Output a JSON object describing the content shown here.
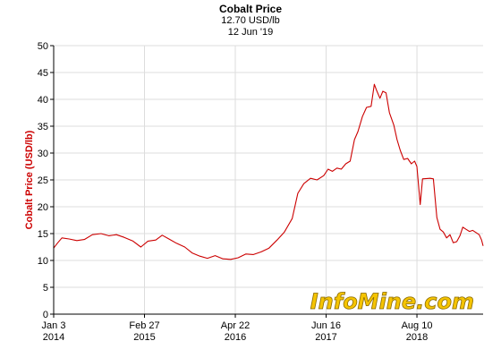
{
  "header": {
    "title": "Cobalt Price",
    "current_value": "12.70 USD/lb",
    "date": "12 Jun '19"
  },
  "watermark": {
    "text": "InfoMine.com",
    "fill": "#f5c400",
    "stroke": "#8a6a00"
  },
  "colors": {
    "line": "#cc0000",
    "axis": "#000000",
    "grid": "#dddddd",
    "ylabel": "#cc0000"
  },
  "chart_data": {
    "type": "line",
    "title": "Cobalt Price",
    "ylabel": "Cobalt Price (USD/lb)",
    "xlabel": "",
    "ylim": [
      0,
      50
    ],
    "yticks": [
      0,
      5,
      10,
      15,
      20,
      25,
      30,
      35,
      40,
      45,
      50
    ],
    "xlim": [
      "2014-01-03",
      "2019-06-12"
    ],
    "xticks": [
      {
        "date": "2014-01-03",
        "label": "Jan 3",
        "year": "2014"
      },
      {
        "date": "2015-02-27",
        "label": "Feb 27",
        "year": "2015"
      },
      {
        "date": "2016-04-22",
        "label": "Apr 22",
        "year": "2016"
      },
      {
        "date": "2017-06-16",
        "label": "Jun 16",
        "year": "2017"
      },
      {
        "date": "2018-08-10",
        "label": "Aug 10",
        "year": "2018"
      }
    ],
    "grid": true,
    "series": [
      {
        "points": [
          [
            "2014-01-03",
            12.3
          ],
          [
            "2014-01-20",
            13.2
          ],
          [
            "2014-02-10",
            14.2
          ],
          [
            "2014-03-15",
            14.0
          ],
          [
            "2014-04-20",
            13.7
          ],
          [
            "2014-05-25",
            13.9
          ],
          [
            "2014-07-01",
            14.8
          ],
          [
            "2014-08-10",
            15.0
          ],
          [
            "2014-09-15",
            14.6
          ],
          [
            "2014-10-20",
            14.8
          ],
          [
            "2014-11-25",
            14.3
          ],
          [
            "2015-01-05",
            13.6
          ],
          [
            "2015-02-10",
            12.5
          ],
          [
            "2015-03-15",
            13.6
          ],
          [
            "2015-04-20",
            13.8
          ],
          [
            "2015-05-20",
            14.7
          ],
          [
            "2015-06-20",
            14.0
          ],
          [
            "2015-07-25",
            13.2
          ],
          [
            "2015-09-01",
            12.5
          ],
          [
            "2015-10-05",
            11.4
          ],
          [
            "2015-11-10",
            10.8
          ],
          [
            "2015-12-15",
            10.4
          ],
          [
            "2016-01-20",
            10.9
          ],
          [
            "2016-02-25",
            10.3
          ],
          [
            "2016-04-01",
            10.2
          ],
          [
            "2016-05-05",
            10.5
          ],
          [
            "2016-06-10",
            11.2
          ],
          [
            "2016-07-15",
            11.1
          ],
          [
            "2016-08-20",
            11.6
          ],
          [
            "2016-09-25",
            12.3
          ],
          [
            "2016-11-01",
            13.8
          ],
          [
            "2016-12-05",
            15.3
          ],
          [
            "2017-01-10",
            17.8
          ],
          [
            "2017-02-05",
            22.5
          ],
          [
            "2017-03-05",
            24.3
          ],
          [
            "2017-04-05",
            25.3
          ],
          [
            "2017-05-05",
            25.0
          ],
          [
            "2017-06-05",
            25.8
          ],
          [
            "2017-06-25",
            27.0
          ],
          [
            "2017-07-15",
            26.6
          ],
          [
            "2017-08-05",
            27.2
          ],
          [
            "2017-08-25",
            27.0
          ],
          [
            "2017-09-15",
            28.0
          ],
          [
            "2017-10-05",
            28.5
          ],
          [
            "2017-10-25",
            32.5
          ],
          [
            "2017-11-10",
            34.0
          ],
          [
            "2017-12-01",
            36.8
          ],
          [
            "2017-12-20",
            38.5
          ],
          [
            "2018-01-10",
            38.7
          ],
          [
            "2018-01-25",
            42.8
          ],
          [
            "2018-02-05",
            41.6
          ],
          [
            "2018-02-20",
            40.2
          ],
          [
            "2018-03-05",
            41.5
          ],
          [
            "2018-03-20",
            41.2
          ],
          [
            "2018-04-05",
            37.5
          ],
          [
            "2018-04-25",
            35.2
          ],
          [
            "2018-05-10",
            32.5
          ],
          [
            "2018-05-25",
            30.5
          ],
          [
            "2018-06-10",
            28.8
          ],
          [
            "2018-06-28",
            29.0
          ],
          [
            "2018-07-15",
            28.0
          ],
          [
            "2018-07-30",
            28.5
          ],
          [
            "2018-08-10",
            27.5
          ],
          [
            "2018-08-25",
            20.4
          ],
          [
            "2018-09-05",
            25.2
          ],
          [
            "2018-10-10",
            25.3
          ],
          [
            "2018-10-25",
            25.2
          ],
          [
            "2018-11-10",
            18.0
          ],
          [
            "2018-11-25",
            15.8
          ],
          [
            "2018-12-10",
            15.3
          ],
          [
            "2018-12-25",
            14.2
          ],
          [
            "2019-01-10",
            14.8
          ],
          [
            "2019-01-25",
            13.3
          ],
          [
            "2019-02-10",
            13.5
          ],
          [
            "2019-02-25",
            14.6
          ],
          [
            "2019-03-10",
            16.2
          ],
          [
            "2019-03-25",
            15.8
          ],
          [
            "2019-04-10",
            15.4
          ],
          [
            "2019-04-25",
            15.6
          ],
          [
            "2019-05-10",
            15.2
          ],
          [
            "2019-05-25",
            14.8
          ],
          [
            "2019-06-05",
            13.8
          ],
          [
            "2019-06-12",
            12.7
          ]
        ]
      }
    ]
  }
}
